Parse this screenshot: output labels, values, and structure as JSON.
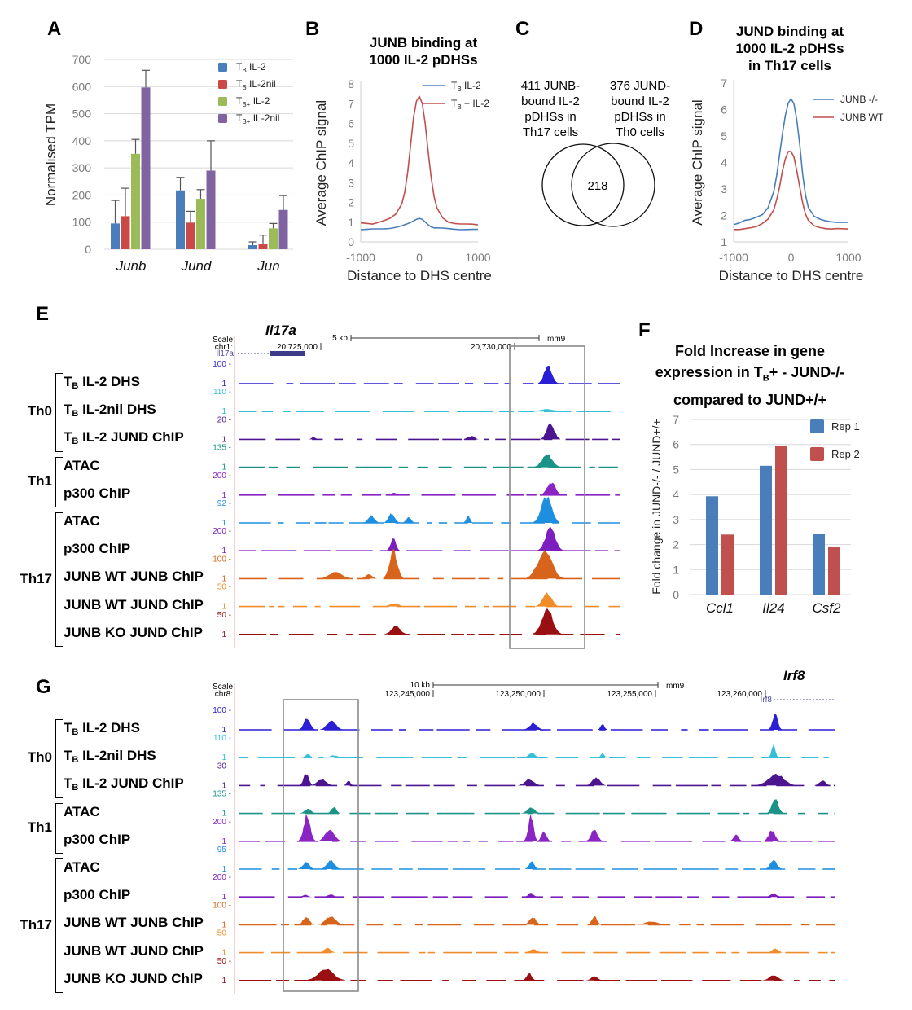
{
  "panels": {
    "A": {
      "letter": "A",
      "chart_data": {
        "type": "bar",
        "title": "",
        "ylabel": "Normalised TPM",
        "xlabel": "",
        "ylim": [
          0,
          700
        ],
        "yticks": [
          0,
          100,
          200,
          300,
          400,
          500,
          600,
          700
        ],
        "categories": [
          "Junb",
          "Jund",
          "Jun"
        ],
        "series": [
          {
            "name": "TB IL-2",
            "label_main": "T",
            "label_sub": "B",
            "label_rest": " IL-2",
            "color": "#4a7ebb",
            "values": [
              95,
              217,
              15
            ],
            "error_top": [
              180,
              265,
              27
            ]
          },
          {
            "name": "TB IL-2nil",
            "label_main": "T",
            "label_sub": "B",
            "label_rest": " IL-2nil",
            "color": "#cb4a47",
            "values": [
              122,
              98,
              18
            ],
            "error_top": [
              225,
              140,
              52
            ]
          },
          {
            "name": "TB+ IL-2",
            "label_main": "T",
            "label_sub": "B+",
            "label_rest": " IL-2",
            "color": "#9bbb59",
            "values": [
              352,
              186,
              77
            ],
            "error_top": [
              405,
              220,
              95
            ]
          },
          {
            "name": "TB+ IL-2nil",
            "label_main": "T",
            "label_sub": "B+",
            "label_rest": " IL-2nil",
            "color": "#8064a2",
            "values": [
              597,
              290,
              145
            ],
            "error_top": [
              660,
              400,
              198
            ]
          }
        ],
        "grid": true,
        "legend": "top-right"
      }
    },
    "B": {
      "letter": "B",
      "title_lines": [
        "JUNB binding at",
        "1000 IL-2 pDHSs"
      ],
      "chart_data": {
        "type": "line",
        "title": "JUNB binding at 1000 IL-2 pDHSs",
        "xlabel": "Distance to DHS centre",
        "ylabel": "Average ChIP signal",
        "xlim": [
          -1000,
          1000
        ],
        "ylim": [
          0,
          8
        ],
        "xticks": [
          -1000,
          0,
          1000
        ],
        "yticks": [
          0,
          1,
          2,
          3,
          4,
          5,
          6,
          7,
          8
        ],
        "x": [
          -1000,
          -900,
          -800,
          -700,
          -600,
          -500,
          -400,
          -300,
          -250,
          -200,
          -150,
          -100,
          -50,
          0,
          50,
          100,
          150,
          200,
          250,
          300,
          400,
          500,
          600,
          700,
          800,
          900,
          1000
        ],
        "series": [
          {
            "name": "TB IL-2",
            "label_main": "T",
            "label_sub": "B",
            "label_rest": " IL-2",
            "color": "#4a7ebb",
            "values": [
              0.62,
              0.62,
              0.64,
              0.66,
              0.68,
              0.7,
              0.74,
              0.8,
              0.85,
              0.92,
              1.0,
              1.08,
              1.15,
              1.18,
              1.12,
              1.0,
              0.88,
              0.78,
              0.72,
              0.7,
              0.68,
              0.66,
              0.65,
              0.64,
              0.64,
              0.63,
              0.62
            ]
          },
          {
            "name": "TB + IL-2",
            "label_main": "T",
            "label_sub": "B",
            "label_rest": " + IL-2",
            "color": "#c0504d",
            "values": [
              0.95,
              0.92,
              0.9,
              1.0,
              1.1,
              1.2,
              1.4,
              1.9,
              2.5,
              3.5,
              4.9,
              6.3,
              7.1,
              7.35,
              7.0,
              6.0,
              4.6,
              3.3,
              2.3,
              1.7,
              1.2,
              1.0,
              0.95,
              0.92,
              0.9,
              0.88,
              0.85
            ]
          }
        ],
        "legend": "top-right"
      }
    },
    "C": {
      "letter": "C",
      "left_label_lines": [
        "411 JUNB-",
        "bound IL-2",
        "pDHSs in",
        "Th17 cells"
      ],
      "right_label_lines": [
        "376 JUND-",
        "bound IL-2",
        "pDHSs in",
        "Th0 cells"
      ],
      "overlap": "218",
      "chart_data": {
        "type": "venn",
        "sets": [
          {
            "name": "JUNB-bound IL-2 pDHSs in Th17 cells",
            "size": 411
          },
          {
            "name": "JUND-bound IL-2 pDHSs in Th0 cells",
            "size": 376
          }
        ],
        "intersection": 218
      }
    },
    "D": {
      "letter": "D",
      "title_lines": [
        "JUND binding at",
        "1000 IL-2 pDHSs",
        "in Th17 cells"
      ],
      "chart_data": {
        "type": "line",
        "title": "JUND binding at 1000 IL-2 pDHSs in Th17 cells",
        "xlabel": "Distance to DHS centre",
        "ylabel": "Average ChIP signal",
        "xlim": [
          -1000,
          1000
        ],
        "ylim": [
          1,
          7
        ],
        "xticks": [
          -1000,
          0,
          1000
        ],
        "yticks": [
          1,
          2,
          3,
          4,
          5,
          6,
          7
        ],
        "x": [
          -1000,
          -900,
          -800,
          -700,
          -600,
          -500,
          -400,
          -300,
          -250,
          -200,
          -150,
          -100,
          -50,
          0,
          50,
          100,
          150,
          200,
          250,
          300,
          400,
          500,
          600,
          700,
          800,
          900,
          1000
        ],
        "series": [
          {
            "name": "JUNB -/-",
            "color": "#4a7ebb",
            "values": [
              1.65,
              1.7,
              1.8,
              1.85,
              1.95,
              2.05,
              2.3,
              2.9,
              3.5,
              4.3,
              5.1,
              5.8,
              6.25,
              6.4,
              6.2,
              5.6,
              4.7,
              3.6,
              2.8,
              2.3,
              1.95,
              1.85,
              1.8,
              1.78,
              1.75,
              1.73,
              1.72
            ]
          },
          {
            "name": "JUNB WT",
            "color": "#c0504d",
            "values": [
              1.45,
              1.45,
              1.5,
              1.55,
              1.6,
              1.7,
              1.85,
              2.2,
              2.6,
              3.1,
              3.7,
              4.15,
              4.4,
              4.4,
              4.2,
              3.7,
              3.1,
              2.5,
              2.05,
              1.8,
              1.6,
              1.55,
              1.52,
              1.5,
              1.5,
              1.48,
              1.47
            ]
          }
        ],
        "legend": "top-right"
      }
    },
    "E": {
      "letter": "E",
      "gene_title": "Il17a",
      "browser": {
        "scale_label": "Scale",
        "chrom_label": "chr1:",
        "scale_bar": "5 kb",
        "assembly": "mm9",
        "coord_ticks": [
          "20,725,000",
          "20,730,000"
        ],
        "gene_track_label": "Il17a"
      },
      "groups": [
        {
          "name": "Th0",
          "tracks": [
            {
              "pre": "T",
              "sub": "B",
              "post": " IL-2 DHS",
              "max": "100",
              "color": "#2b1fd6"
            },
            {
              "pre": "T",
              "sub": "B",
              "post": " IL-2nil DHS",
              "max": "110",
              "color": "#35c0d8"
            },
            {
              "pre": "T",
              "sub": "B",
              "post": " IL-2 JUND ChIP",
              "max": "20",
              "color": "#4b1590"
            }
          ]
        },
        {
          "name": "Th1",
          "tracks": [
            {
              "pre": "",
              "sub": "",
              "post": "ATAC",
              "max": "135",
              "color": "#1b9487"
            },
            {
              "pre": "",
              "sub": "",
              "post": "p300 ChIP",
              "max": "200",
              "color": "#8a25c4"
            }
          ]
        },
        {
          "name": "Th17",
          "tracks": [
            {
              "pre": "",
              "sub": "",
              "post": "ATAC",
              "max": "92",
              "color": "#1e8fe0"
            },
            {
              "pre": "",
              "sub": "",
              "post": "p300 ChIP",
              "max": "200",
              "color": "#7d1fbf"
            },
            {
              "pre": "",
              "sub": "",
              "post": "JUNB WT JUNB ChIP",
              "max": "100",
              "color": "#d8641c"
            },
            {
              "pre": "",
              "sub": "",
              "post": "JUNB WT JUND ChIP",
              "max": "50",
              "color": "#f08c2a"
            },
            {
              "pre": "",
              "sub": "",
              "post": "JUNB KO JUND ChIP",
              "max": "50",
              "color": "#9a0f12"
            }
          ]
        }
      ],
      "min_label": "1"
    },
    "F": {
      "letter": "F",
      "title_lines": [
        "Fold Increase in gene",
        "expression in T",
        "B",
        "+ - JUND-/-",
        "compared to JUND+/+"
      ],
      "chart_data": {
        "type": "bar",
        "title": "Fold Increase in gene expression in TB+ - JUND-/- compared to JUND+/+",
        "ylabel": "Fold change in JUND-/- / JUND+/+",
        "xlabel": "",
        "ylim": [
          0,
          7
        ],
        "yticks": [
          0,
          1,
          2,
          3,
          4,
          5,
          6,
          7
        ],
        "categories": [
          "Ccl1",
          "Il24",
          "Csf2"
        ],
        "series": [
          {
            "name": "Rep 1",
            "color": "#4a7ebb",
            "values": [
              3.93,
              5.15,
              2.42
            ]
          },
          {
            "name": "Rep 2",
            "color": "#c0504d",
            "values": [
              2.4,
              5.95,
              1.9
            ]
          }
        ],
        "grid": true,
        "legend": "top-right"
      }
    },
    "G": {
      "letter": "G",
      "gene_title": "Irf8",
      "browser": {
        "scale_label": "Scale",
        "chrom_label": "chr8:",
        "scale_bar": "10 kb",
        "assembly": "mm9",
        "coord_ticks": [
          "123,245,000",
          "123,250,000",
          "123,255,000",
          "123,260,000"
        ],
        "gene_track_label": "Irf8"
      },
      "track_max": [
        "100",
        "110",
        "30",
        "135",
        "200",
        "95",
        "200",
        "100",
        "50",
        "50"
      ],
      "min_label": "1"
    }
  }
}
